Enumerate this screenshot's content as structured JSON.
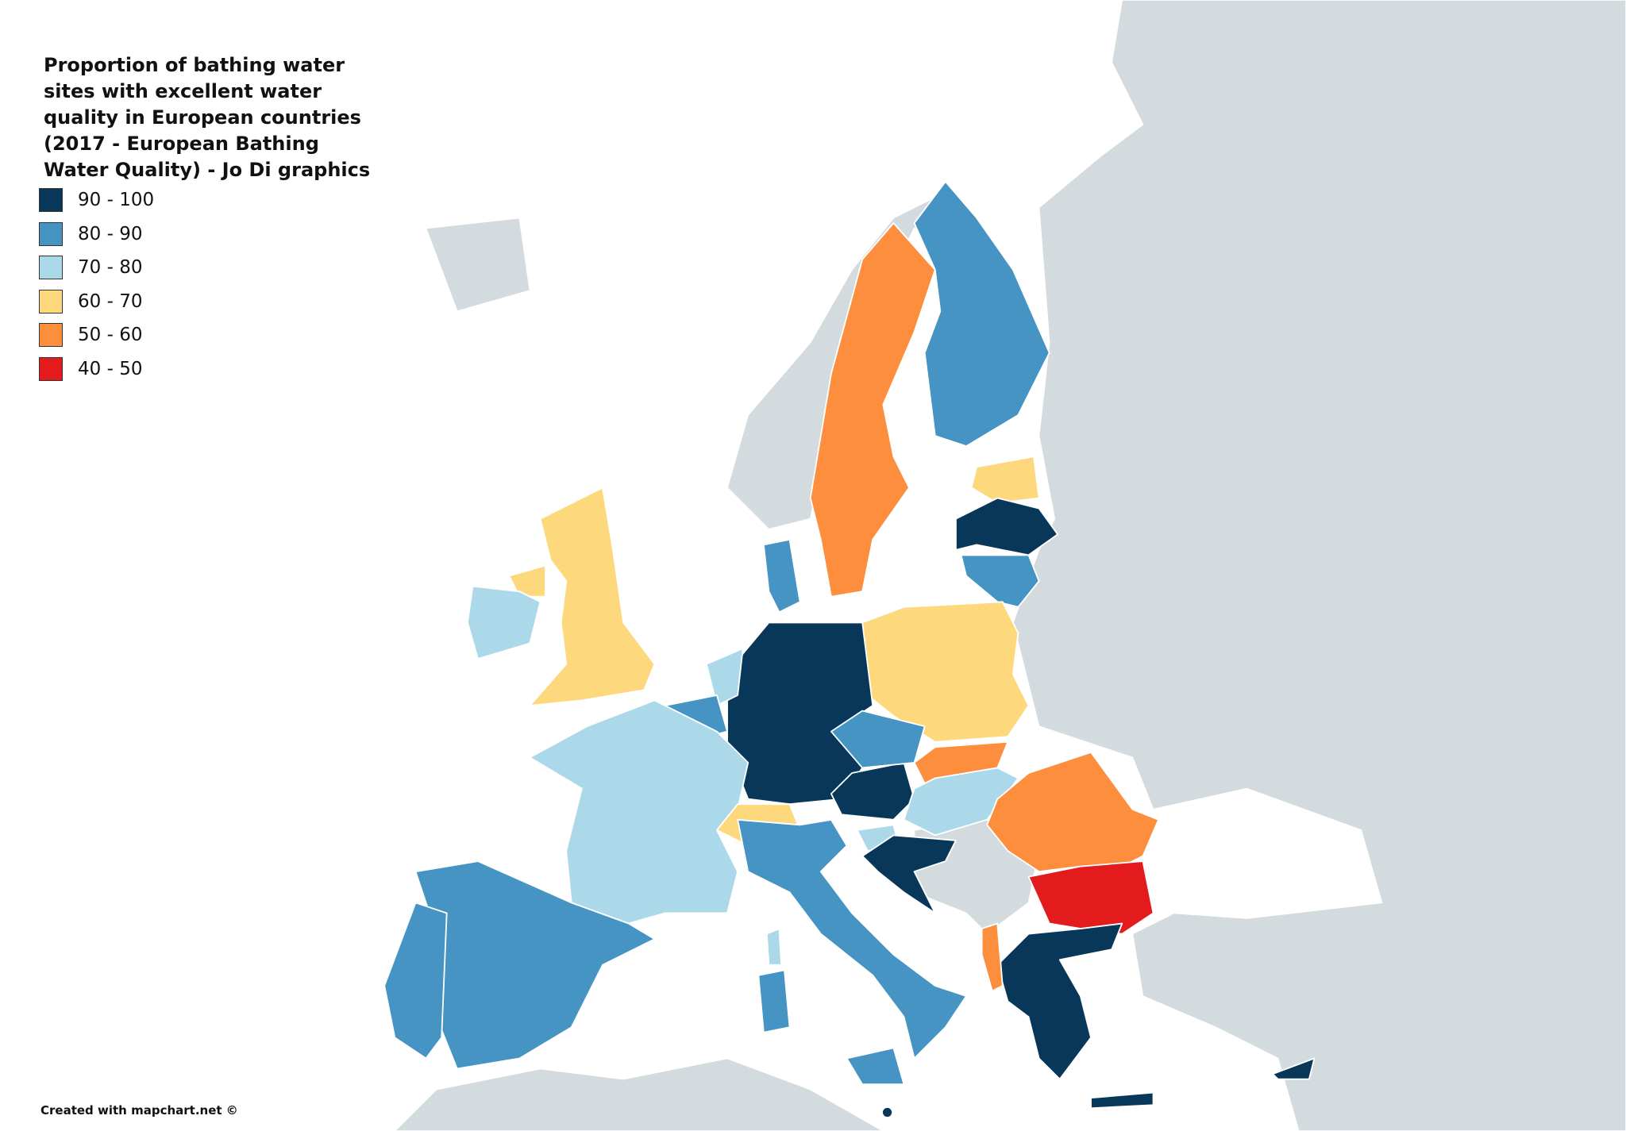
{
  "title": "Proportion of bathing water sites with excellent water quality in European countries (2017 - European Bathing Water Quality) - Jo Di graphics",
  "legend": [
    {
      "label": "90 - 100",
      "color": "#08375a"
    },
    {
      "label": "80 - 90",
      "color": "#4594c4"
    },
    {
      "label": "70 - 80",
      "color": "#acd9e9"
    },
    {
      "label": "60 - 70",
      "color": "#fdd87c"
    },
    {
      "label": "50 - 60",
      "color": "#fd8e3e"
    },
    {
      "label": "40 - 50",
      "color": "#e31b1d"
    }
  ],
  "credit": "Created with mapchart.net ©"
}
